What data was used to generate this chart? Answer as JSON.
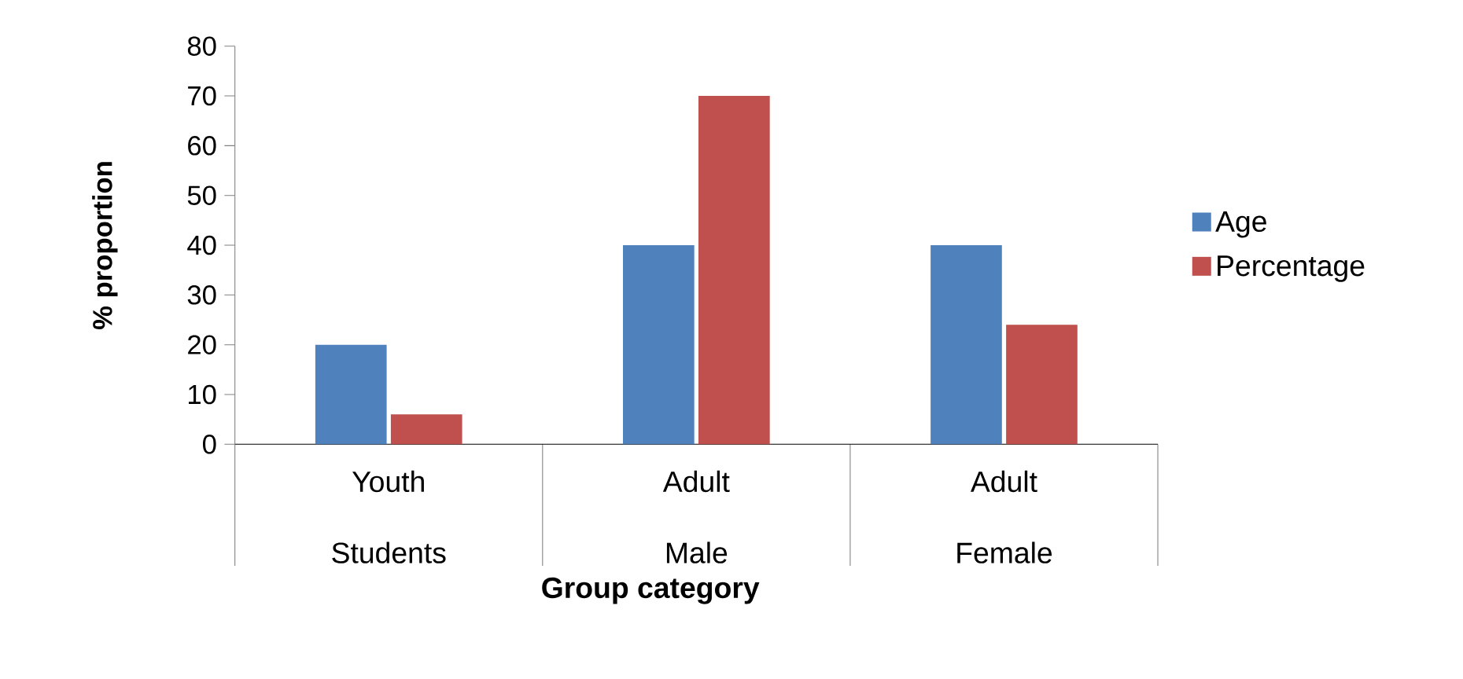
{
  "chart_data": {
    "type": "bar",
    "xlabel": "Group category",
    "ylabel": "% proportion",
    "categories": [
      "Youth Students",
      "Adult Male",
      "Adult Female"
    ],
    "series": [
      {
        "name": "Age",
        "color": "#4f81bd",
        "values": [
          20,
          40,
          40
        ]
      },
      {
        "name": "Percentage",
        "color": "#c0504d",
        "values": [
          6,
          70,
          24
        ]
      }
    ],
    "ylim": [
      0,
      80
    ],
    "yticks": [
      0,
      10,
      20,
      30,
      40,
      50,
      60,
      70,
      80
    ],
    "grid": false,
    "legend": "right"
  }
}
